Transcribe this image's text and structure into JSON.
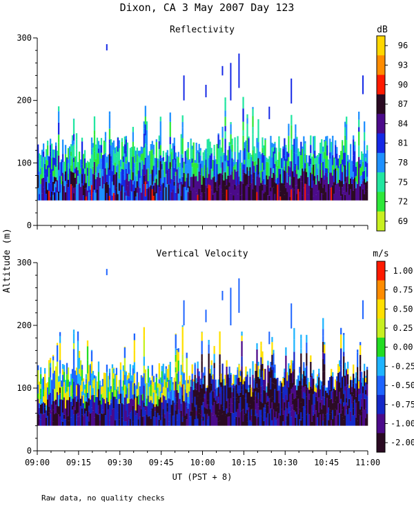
{
  "header": {
    "title": "Dixon, CA  3 May 2007  Day 123",
    "ylabel": "Altitude (m)",
    "xlabel": "UT  (PST + 8)",
    "footer": "Raw data, no quality checks"
  },
  "chart_data": [
    {
      "type": "heatmap",
      "title": "Reflectivity",
      "xlabel": "UT  (PST + 8)",
      "ylabel": "Altitude (m)",
      "x_ticks": [
        "09:00",
        "09:15",
        "09:30",
        "09:45",
        "10:00",
        "10:15",
        "10:30",
        "10:45",
        "11:00"
      ],
      "xlim_minutes": [
        0,
        120
      ],
      "y_ticks": [
        "0",
        "100",
        "200",
        "300"
      ],
      "ylim": [
        0,
        300
      ],
      "colorbar": {
        "unit": "dB",
        "labels": [
          "96",
          "93",
          "90",
          "87",
          "84",
          "81",
          "78",
          "75",
          "72",
          "69"
        ],
        "colors": [
          "#ffd700",
          "#ff8c00",
          "#ff1a00",
          "#2a0a22",
          "#4b0a8a",
          "#1428e6",
          "#1e90ff",
          "#22e6a0",
          "#2ee83a",
          "#c8f020"
        ]
      },
      "echo_base_altitude_m": 40,
      "echo_typical_top_m": [
        120,
        140
      ],
      "max_echo_altitude_m": 290
    },
    {
      "type": "heatmap",
      "title": "Vertical Velocity",
      "xlabel": "UT  (PST + 8)",
      "ylabel": "Altitude (m)",
      "x_ticks": [
        "09:00",
        "09:15",
        "09:30",
        "09:45",
        "10:00",
        "10:15",
        "10:30",
        "10:45",
        "11:00"
      ],
      "xlim_minutes": [
        0,
        120
      ],
      "y_ticks": [
        "0",
        "100",
        "200",
        "300"
      ],
      "ylim": [
        0,
        300
      ],
      "colorbar": {
        "unit": "m/s",
        "labels": [
          "1.00",
          "0.75",
          "0.50",
          "0.25",
          "0.00",
          "-0.25",
          "-0.50",
          "-0.75",
          "-1.00",
          "-2.00"
        ],
        "colors": [
          "#ff1a00",
          "#ff8c00",
          "#ffe000",
          "#c8f020",
          "#22dd22",
          "#1eb4ff",
          "#1e64ff",
          "#1428c8",
          "#4b0a8a",
          "#2a0a22"
        ]
      },
      "echo_base_altitude_m": 40,
      "echo_typical_top_m": [
        120,
        140
      ],
      "max_echo_altitude_m": 290
    }
  ]
}
